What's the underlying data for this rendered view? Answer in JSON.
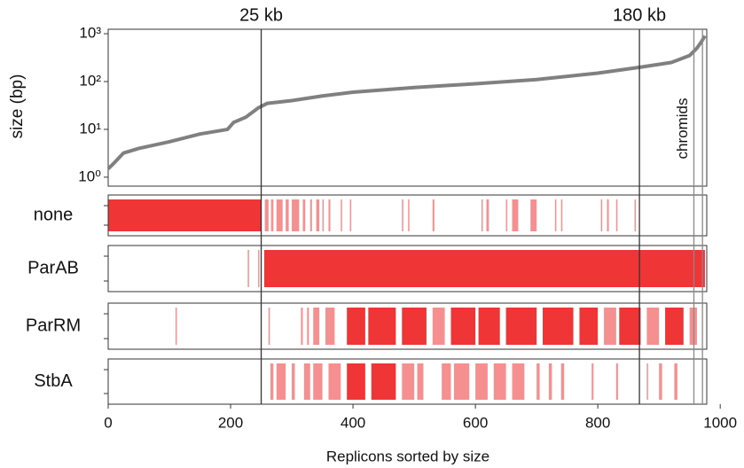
{
  "chart_data": {
    "type": "line",
    "y_label": "size (bp)",
    "x_label": "Replicons sorted by size",
    "log_y": true,
    "x": [
      0,
      10,
      25,
      50,
      100,
      150,
      195,
      205,
      225,
      245,
      260,
      300,
      350,
      400,
      500,
      600,
      700,
      800,
      870,
      920,
      950,
      962,
      970,
      975
    ],
    "series": [
      {
        "color": "#808080",
        "values": [
          1.5,
          2,
          3.2,
          4,
          5.5,
          8,
          10,
          14,
          18,
          28,
          35,
          40,
          50,
          60,
          75,
          90,
          110,
          150,
          200,
          250,
          350,
          500,
          700,
          900
        ]
      }
    ],
    "ylim": [
      0.65,
      1240
    ],
    "yticks": [
      {
        "value": 1,
        "label": "10⁰"
      },
      {
        "value": 10,
        "label": "10¹"
      },
      {
        "value": 100,
        "label": "10²"
      },
      {
        "value": 1000,
        "label": "10³"
      }
    ],
    "xlim": [
      0,
      978
    ],
    "xticks": [
      0,
      200,
      400,
      600,
      800,
      1000
    ],
    "annotations": [
      {
        "x": 250,
        "label": "25 kb"
      },
      {
        "x": 868,
        "label": "180 kb"
      }
    ],
    "chromids": {
      "label": "chromids",
      "x": [
        957,
        971
      ]
    },
    "track_color": "#ef3535",
    "tracks": [
      {
        "name": "none",
        "spans": [
          [
            0,
            250
          ],
          [
            256,
            262
          ],
          [
            266,
            270
          ],
          [
            275,
            285
          ],
          [
            290,
            295
          ],
          [
            300,
            312
          ],
          [
            318,
            322
          ],
          [
            330,
            333
          ],
          [
            340,
            345
          ],
          [
            350,
            352
          ],
          [
            360,
            363
          ],
          [
            380,
            382
          ],
          [
            395,
            397
          ],
          [
            480,
            482
          ],
          [
            490,
            492
          ],
          [
            530,
            533
          ],
          [
            610,
            612
          ],
          [
            618,
            622
          ],
          [
            650,
            652
          ],
          [
            660,
            670
          ],
          [
            690,
            700
          ],
          [
            730,
            732
          ],
          [
            740,
            742
          ],
          [
            805,
            807
          ],
          [
            815,
            818
          ],
          [
            830,
            832
          ],
          [
            860,
            862
          ]
        ]
      },
      {
        "name": "ParAB",
        "spans": [
          [
            228,
            230
          ],
          [
            245,
            247
          ],
          [
            255,
            975
          ]
        ]
      },
      {
        "name": "ParRM",
        "spans": [
          [
            110,
            112
          ],
          [
            262,
            264
          ],
          [
            315,
            318
          ],
          [
            325,
            328
          ],
          [
            335,
            345
          ],
          [
            355,
            370
          ],
          [
            390,
            420
          ],
          [
            425,
            470
          ],
          [
            480,
            520
          ],
          [
            530,
            550
          ],
          [
            560,
            600
          ],
          [
            605,
            640
          ],
          [
            650,
            700
          ],
          [
            710,
            760
          ],
          [
            770,
            800
          ],
          [
            810,
            830
          ],
          [
            835,
            870
          ],
          [
            880,
            900
          ],
          [
            910,
            940
          ],
          [
            950,
            962
          ]
        ]
      },
      {
        "name": "StbA",
        "spans": [
          [
            265,
            270
          ],
          [
            275,
            290
          ],
          [
            300,
            305
          ],
          [
            320,
            330
          ],
          [
            335,
            350
          ],
          [
            360,
            380
          ],
          [
            390,
            420
          ],
          [
            430,
            470
          ],
          [
            480,
            500
          ],
          [
            505,
            515
          ],
          [
            545,
            560
          ],
          [
            565,
            590
          ],
          [
            600,
            620
          ],
          [
            630,
            650
          ],
          [
            660,
            680
          ],
          [
            700,
            705
          ],
          [
            720,
            725
          ],
          [
            740,
            745
          ],
          [
            790,
            793
          ],
          [
            830,
            833
          ],
          [
            880,
            882
          ],
          [
            900,
            905
          ],
          [
            925,
            930
          ]
        ]
      }
    ]
  }
}
